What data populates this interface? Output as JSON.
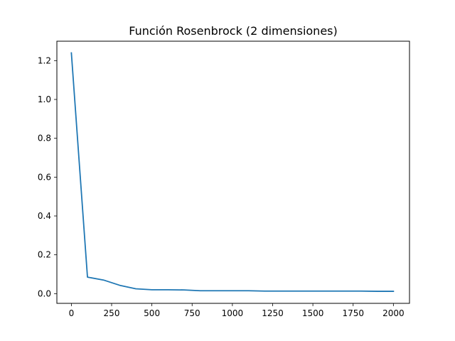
{
  "chart_data": {
    "type": "line",
    "title": "Función Rosenbrock (2 dimensiones)",
    "xlabel": "",
    "ylabel": "",
    "xlim": [
      -90,
      2100
    ],
    "ylim": [
      -0.05,
      1.3
    ],
    "xticks": [
      0,
      250,
      500,
      750,
      1000,
      1250,
      1500,
      1750,
      2000
    ],
    "xtick_labels": [
      "0",
      "250",
      "500",
      "750",
      "1000",
      "1250",
      "1500",
      "1750",
      "2000"
    ],
    "yticks": [
      0.0,
      0.2,
      0.4,
      0.6,
      0.8,
      1.0,
      1.2
    ],
    "ytick_labels": [
      "0.0",
      "0.2",
      "0.4",
      "0.6",
      "0.8",
      "1.0",
      "1.2"
    ],
    "grid": false,
    "legend": false,
    "series": [
      {
        "color": "#1f77b4",
        "x": [
          0,
          100,
          200,
          300,
          400,
          500,
          600,
          700,
          800,
          900,
          1000,
          1100,
          1200,
          1300,
          1400,
          1500,
          1600,
          1700,
          1800,
          1900,
          2000
        ],
        "y": [
          1.24,
          0.085,
          0.07,
          0.043,
          0.025,
          0.02,
          0.02,
          0.019,
          0.015,
          0.015,
          0.015,
          0.015,
          0.013,
          0.013,
          0.013,
          0.013,
          0.013,
          0.013,
          0.013,
          0.012,
          0.012
        ]
      }
    ]
  }
}
